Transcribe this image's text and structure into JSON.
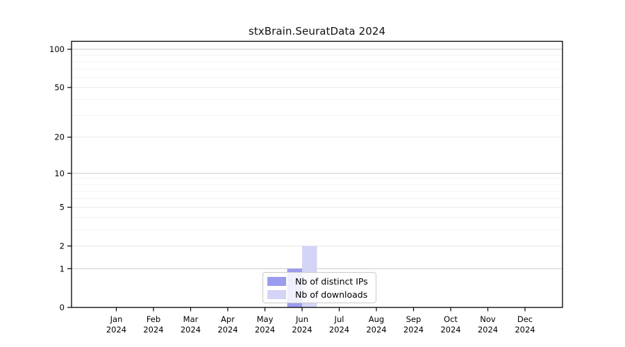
{
  "chart_data": {
    "type": "bar",
    "title": "stxBrain.SeuratData 2024",
    "categories": [
      "Jan",
      "Feb",
      "Mar",
      "Apr",
      "May",
      "Jun",
      "Jul",
      "Aug",
      "Sep",
      "Oct",
      "Nov",
      "Dec"
    ],
    "year_label": "2024",
    "series": [
      {
        "name": "Nb of distinct IPs",
        "color": "#9c9cee",
        "values": [
          0,
          0,
          0,
          0,
          0,
          1,
          0,
          0,
          0,
          0,
          0,
          0
        ]
      },
      {
        "name": "Nb of downloads",
        "color": "#d4d4f6",
        "values": [
          0,
          0,
          0,
          0,
          0,
          2,
          0,
          0,
          0,
          0,
          0,
          0
        ]
      }
    ],
    "yscale": "log1p",
    "ylim": [
      0,
      100
    ],
    "y_ticks": [
      0,
      1,
      2,
      5,
      10,
      20,
      50,
      100
    ],
    "y_minor_gridlines": [
      3,
      4,
      6,
      7,
      8,
      9,
      30,
      40,
      60,
      70,
      80,
      90
    ],
    "grid": "horizontal",
    "legend_position": "bottom-center",
    "style": {
      "axis_color": "#000000",
      "grid_decade_color": "#c9c9c9",
      "grid_major_color": "#e7e7e7",
      "grid_minor_color": "#f2f2f2",
      "tick_label_color": "#000000",
      "legend_border_color": "#c9c9c9"
    }
  }
}
